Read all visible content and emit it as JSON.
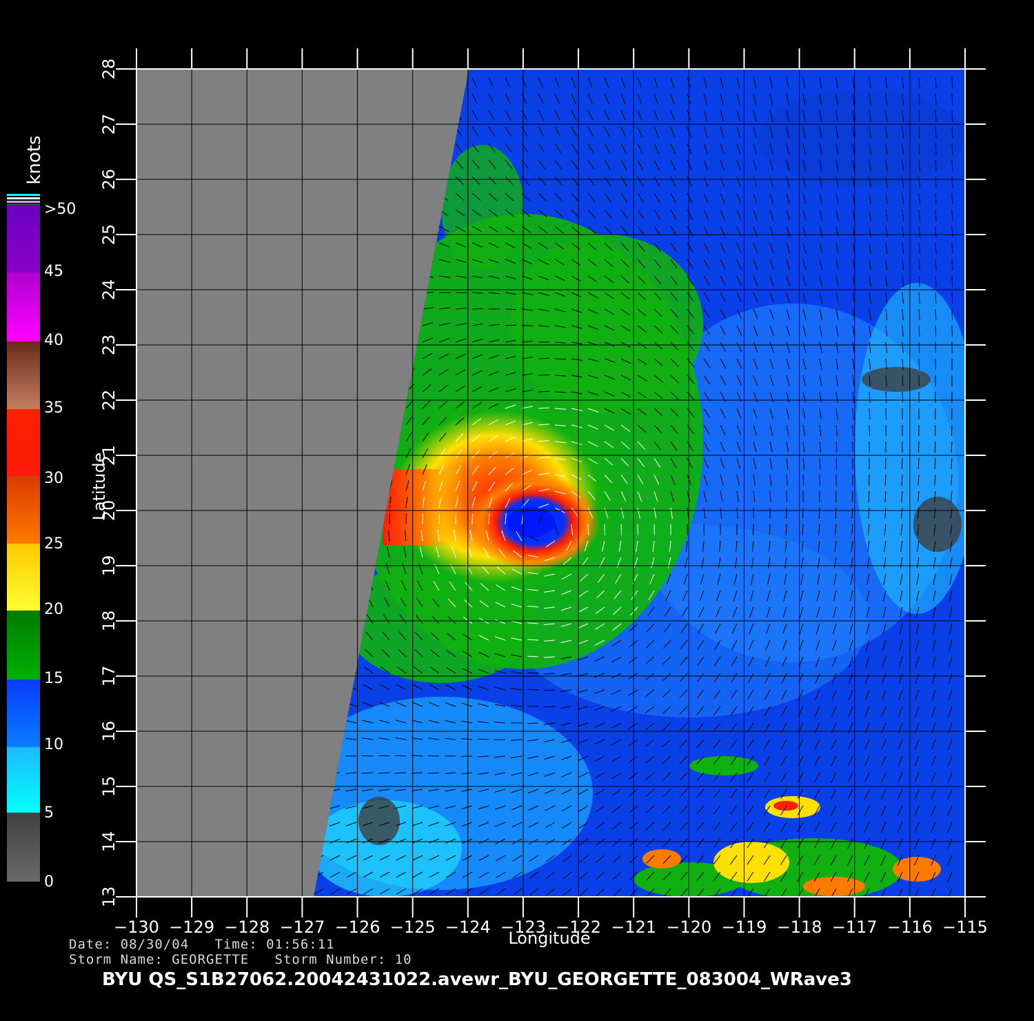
{
  "map": {
    "x_axis_label": "Longitude",
    "y_axis_label": "Latitude",
    "lon_range": [
      -130,
      -115
    ],
    "lat_range": [
      13,
      28
    ],
    "lon_ticks": [
      "−130",
      "−129",
      "−128",
      "−127",
      "−126",
      "−125",
      "−124",
      "−123",
      "−122",
      "−121",
      "−120",
      "−119",
      "−118",
      "−117",
      "−116",
      "−115"
    ],
    "lat_ticks": [
      "13",
      "14",
      "15",
      "16",
      "17",
      "18",
      "19",
      "20",
      "21",
      "22",
      "23",
      "24",
      "25",
      "26",
      "27",
      "28"
    ],
    "no_data_color": "#808080",
    "grid": true,
    "storm_center": {
      "lon": -122.6,
      "lat": 19.7
    }
  },
  "colorbar": {
    "unit_label": "knots",
    "labels": [
      "0",
      "5",
      "10",
      "15",
      "20",
      "25",
      "30",
      "35",
      "40",
      "45",
      ">50"
    ],
    "colors": {
      "low": "#6a6a6a",
      "cyan": "#00ffff",
      "blue": "#0a3cff",
      "green": "#00b000",
      "yellow": "#ffff33",
      "orange": "#ff7a00",
      "red": "#ff1a0a",
      "brown": "#6b2a18",
      "magenta": "#ff00ff",
      "purple": "#6a00c0"
    }
  },
  "info": {
    "line1": "Date: 08/30/04   Time: 01:56:11",
    "line2": "Storm Name: GEORGETTE   Storm Number: 10",
    "title": "BYU QS_S1B27062.20042431022.avewr_BYU_GEORGETTE_083004_WRave3"
  }
}
